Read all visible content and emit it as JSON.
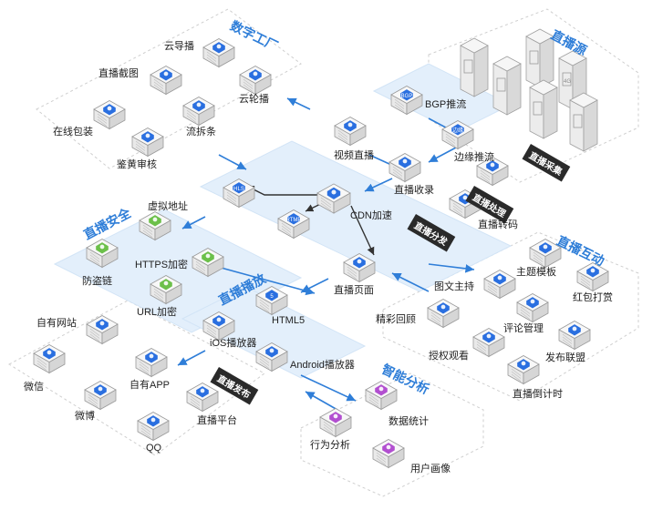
{
  "sections": {
    "source": "直播源",
    "factory": "数字工厂",
    "security": "直播安全",
    "player": "直播播放",
    "interact": "直播互动",
    "analytics": "智能分析"
  },
  "tags": {
    "capture": "直播采集",
    "process": "直播处理",
    "distribute": "直播分发",
    "publish": "直播发布"
  },
  "labels": {
    "cloud_director": "云导播",
    "live_screenshot": "直播截图",
    "carousel": "云轮播",
    "online_pack": "在线包装",
    "stream_split": "流拆条",
    "porn_review": "鉴黄审核",
    "bgp_push": "BGP推流",
    "edge_push": "边缘推流",
    "video_live": "视频直播",
    "live_record": "直播收录",
    "cdn": "CDN加速",
    "transcode": "直播转码",
    "virtual_addr": "虚拟地址",
    "https_enc": "HTTPS加密",
    "anti_leech": "防盗链",
    "url_enc": "URL加密",
    "live_page": "直播页面",
    "html5": "HTML5",
    "ios_player": "iOS播放器",
    "android_player": "Android播放器",
    "own_site": "自有网站",
    "wechat": "微信",
    "own_app": "自有APP",
    "weibo": "微博",
    "live_platform": "直播平台",
    "qq": "QQ",
    "topic_tpl": "主题模板",
    "host": "图文主持",
    "red_packet": "红包打赏",
    "replay": "精彩回顾",
    "comments": "评论管理",
    "auth_view": "授权观看",
    "publish_union": "发布联盟",
    "countdown": "直播倒计时",
    "stats": "数据统计",
    "behavior": "行为分析",
    "user_profile": "用户画像"
  },
  "icons": {
    "bgp": "BGP",
    "edge": "边缘",
    "hls": "HLS",
    "rtmp": "RTMP",
    "h5": "5",
    "fourg": "4G"
  },
  "colors": {
    "accent": "#2f7ed8",
    "icon_blue": "#2a6fe0",
    "icon_green": "#6cc04a",
    "icon_purple": "#b24fd0",
    "tag_bg": "#2a2a2a"
  }
}
